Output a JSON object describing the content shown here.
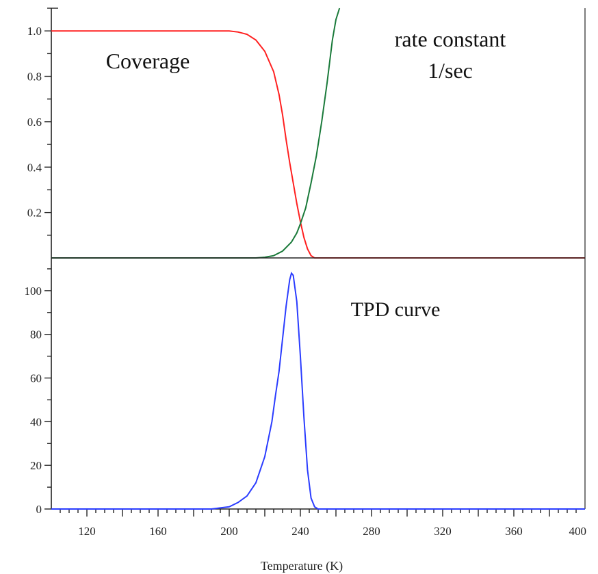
{
  "chart_data": [
    {
      "type": "line",
      "xlim": [
        100,
        400
      ],
      "ylim": [
        0,
        1.1
      ],
      "yticks": [
        "0.2",
        "0.4",
        "0.6",
        "0.8",
        "1.0"
      ],
      "annotations": [
        "Coverage",
        "rate constant",
        "1/sec"
      ],
      "series": [
        {
          "color": "#ff2020",
          "x": [
            100,
            195,
            200,
            205,
            210,
            215,
            220,
            225,
            228,
            230,
            232,
            234,
            236,
            238,
            240,
            242,
            244,
            246,
            248,
            250,
            260,
            300,
            400
          ],
          "y": [
            1.0,
            1.0,
            1.0,
            0.995,
            0.985,
            0.96,
            0.91,
            0.82,
            0.72,
            0.63,
            0.52,
            0.42,
            0.33,
            0.24,
            0.16,
            0.09,
            0.04,
            0.01,
            0.0,
            0.0,
            0.0,
            0.0,
            0.0
          ]
        },
        {
          "color": "#1a7a3a",
          "x": [
            100,
            200,
            215,
            220,
            225,
            230,
            235,
            238,
            240,
            243,
            246,
            249,
            252,
            255,
            258,
            260,
            262
          ],
          "y": [
            0.0,
            0.0,
            0.0,
            0.003,
            0.01,
            0.03,
            0.07,
            0.11,
            0.15,
            0.22,
            0.33,
            0.45,
            0.6,
            0.77,
            0.96,
            1.05,
            1.1
          ]
        }
      ]
    },
    {
      "type": "line",
      "xlabel": "Temperature (K)",
      "xlim": [
        100,
        400
      ],
      "ylim": [
        0,
        115
      ],
      "xticks": [
        "120",
        "160",
        "200",
        "240",
        "280",
        "320",
        "360",
        "400"
      ],
      "yticks": [
        "0",
        "20",
        "40",
        "60",
        "80",
        "100"
      ],
      "annotations": [
        "TPD curve"
      ],
      "series": [
        {
          "color": "#2a3cff",
          "x": [
            100,
            190,
            195,
            200,
            205,
            210,
            215,
            220,
            224,
            226,
            228,
            230,
            232,
            234,
            235,
            236,
            238,
            240,
            242,
            244,
            246,
            248,
            250,
            260,
            300,
            400
          ],
          "y": [
            0,
            0,
            0.5,
            1,
            3,
            6,
            12,
            24,
            40,
            52,
            63,
            78,
            93,
            105,
            108,
            107,
            95,
            70,
            42,
            18,
            5,
            1,
            0,
            0,
            0,
            0
          ]
        }
      ]
    }
  ]
}
